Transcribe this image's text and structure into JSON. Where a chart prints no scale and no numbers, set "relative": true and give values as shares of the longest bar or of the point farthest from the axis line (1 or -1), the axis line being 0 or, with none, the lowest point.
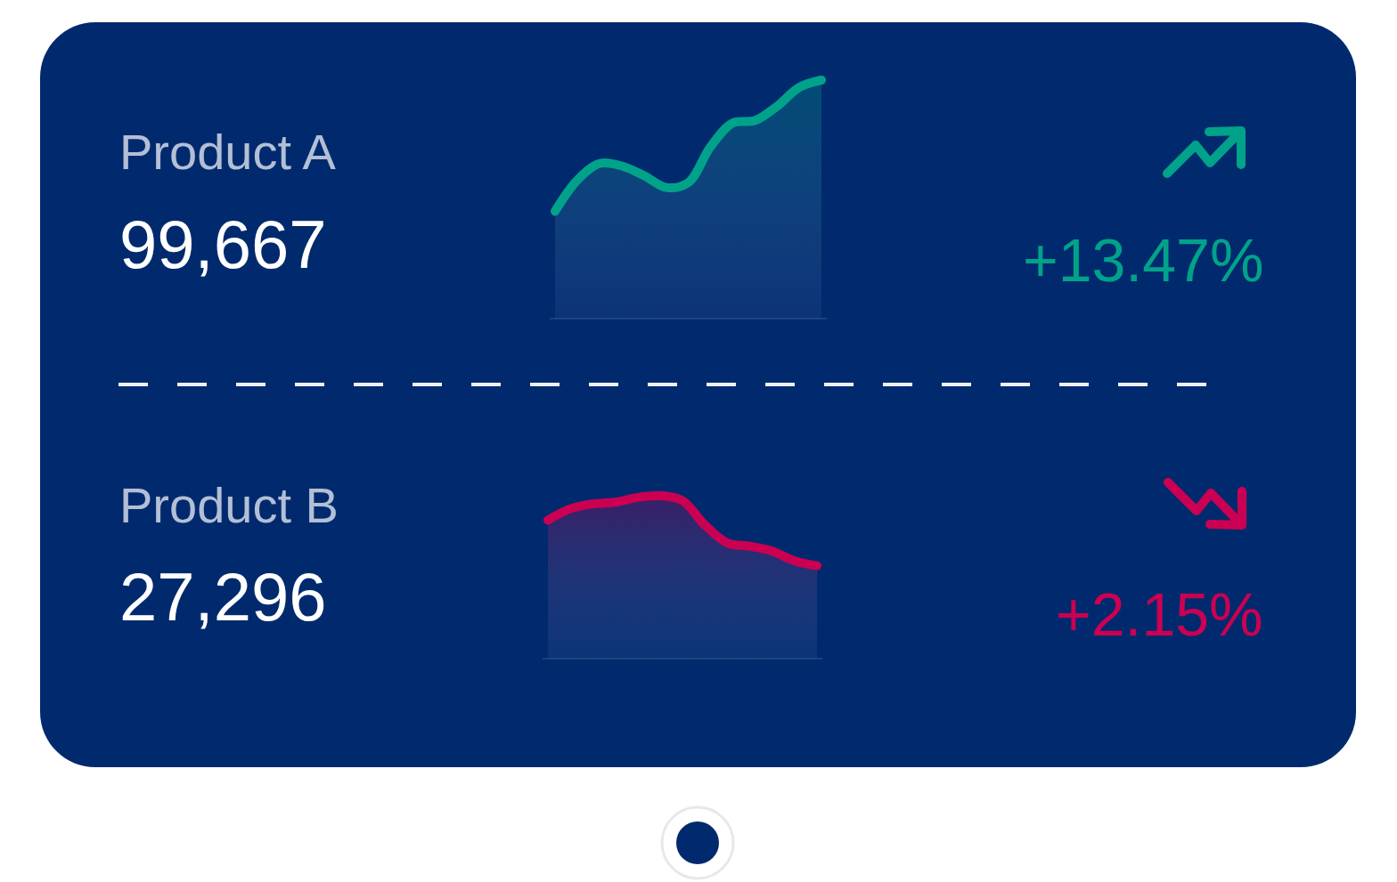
{
  "chart_data": [
    {
      "type": "area",
      "relative": true,
      "title": "Product A",
      "subtitle": "99,667",
      "annotations": [
        "+13.47%"
      ],
      "categories": [
        null,
        null,
        null,
        null,
        null,
        null,
        null,
        null,
        null,
        null,
        null,
        null,
        null
      ],
      "color": "#00a389",
      "values": [
        0.45,
        0.58,
        0.65,
        0.64,
        0.6,
        0.55,
        0.57,
        0.72,
        0.82,
        0.83,
        0.89,
        0.97,
        1.0
      ]
    },
    {
      "type": "area",
      "relative": true,
      "title": "Product B",
      "subtitle": "27,296",
      "annotations": [
        "+2.15%"
      ],
      "categories": [
        null,
        null,
        null,
        null,
        null,
        null,
        null,
        null,
        null,
        null,
        null,
        null,
        null
      ],
      "color": "#cc0052",
      "values": [
        0.85,
        0.92,
        0.95,
        0.96,
        0.99,
        1.0,
        0.97,
        0.82,
        0.71,
        0.69,
        0.66,
        0.6,
        0.57
      ]
    }
  ]
}
